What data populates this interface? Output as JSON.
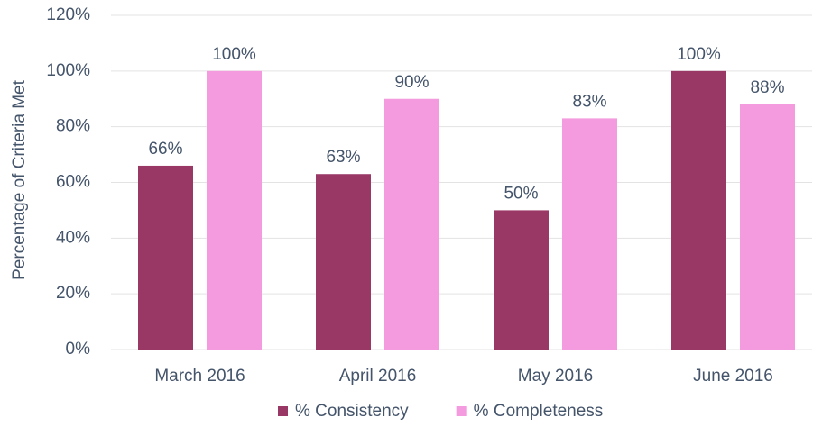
{
  "chart_data": {
    "type": "bar",
    "y_label": "Percentage of Criteria Met",
    "categories": [
      "March 2016",
      "April 2016",
      "May 2016",
      "June 2016"
    ],
    "series": [
      {
        "name": "% Consistency",
        "color": "#993765",
        "values": [
          66,
          63,
          50,
          100
        ],
        "value_labels": [
          "66%",
          "63%",
          "50%",
          "100%"
        ]
      },
      {
        "name": "% Completeness",
        "color": "#f49ade",
        "values": [
          100,
          90,
          83,
          88
        ],
        "value_labels": [
          "100%",
          "90%",
          "83%",
          "88%"
        ]
      }
    ],
    "ylim": [
      0,
      120
    ],
    "yticks": [
      {
        "value": 0,
        "label": "0%"
      },
      {
        "value": 20,
        "label": "20%"
      },
      {
        "value": 40,
        "label": "40%"
      },
      {
        "value": 60,
        "label": "60%"
      },
      {
        "value": 80,
        "label": "80%"
      },
      {
        "value": 100,
        "label": "100%"
      },
      {
        "value": 120,
        "label": "120%"
      }
    ],
    "grid": true,
    "legend": "bottom"
  }
}
